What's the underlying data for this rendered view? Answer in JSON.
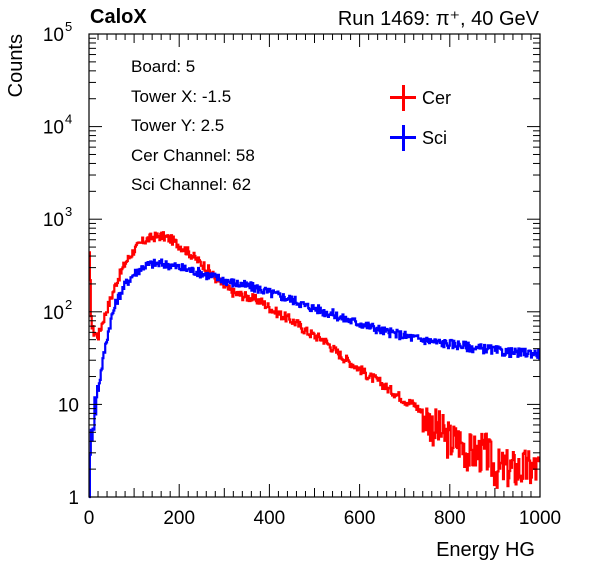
{
  "header": {
    "logo": "CaloX",
    "run": "Run 1469:   π⁺, 40 GeV"
  },
  "info_box": [
    "Board: 5",
    "Tower X: -1.5",
    "Tower Y: 2.5",
    "Cer Channel: 58",
    "Sci Channel: 62"
  ],
  "legend": [
    {
      "label": "Cer",
      "color": "#ff0000"
    },
    {
      "label": "Sci",
      "color": "#0000ff"
    }
  ],
  "colors": {
    "cer": "#ff0000",
    "sci": "#0000ff",
    "axis": "#000000"
  },
  "chart_data": {
    "type": "line",
    "xlabel": "Energy HG",
    "ylabel": "Counts",
    "xlim": [
      0,
      1000
    ],
    "ylim": [
      1,
      100000
    ],
    "yscale": "log",
    "x_ticks": [
      "0",
      "200",
      "400",
      "600",
      "800",
      "1000"
    ],
    "y_ticks": [
      {
        "value": 1,
        "base": "1",
        "exp": ""
      },
      {
        "value": 10,
        "base": "10",
        "exp": ""
      },
      {
        "value": 100,
        "base": "10",
        "exp": "2"
      },
      {
        "value": 1000,
        "base": "10",
        "exp": "3"
      },
      {
        "value": 10000,
        "base": "10",
        "exp": "4"
      },
      {
        "value": 100000,
        "base": "10",
        "exp": "5"
      }
    ],
    "x": [
      0,
      5,
      10,
      20,
      30,
      40,
      50,
      60,
      80,
      100,
      120,
      140,
      160,
      180,
      200,
      220,
      240,
      260,
      280,
      300,
      320,
      340,
      360,
      380,
      400,
      420,
      440,
      460,
      480,
      500,
      520,
      540,
      560,
      580,
      600,
      620,
      640,
      660,
      680,
      700,
      720,
      740,
      760,
      780,
      800,
      820,
      840,
      860,
      880,
      900,
      920,
      940,
      960,
      980,
      1000
    ],
    "series": [
      {
        "name": "Cer",
        "color": "#ff0000",
        "values": [
          400,
          70,
          60,
          55,
          80,
          110,
          150,
          210,
          340,
          470,
          580,
          640,
          660,
          610,
          520,
          440,
          360,
          300,
          230,
          185,
          160,
          150,
          140,
          130,
          110,
          95,
          85,
          75,
          62,
          55,
          50,
          40,
          33,
          28,
          24,
          20,
          18,
          15,
          13,
          11,
          10,
          8,
          6,
          5,
          4,
          4,
          3,
          3,
          3,
          2,
          2,
          2,
          2,
          2,
          2
        ]
      },
      {
        "name": "Sci",
        "color": "#0000ff",
        "values": [
          1,
          6,
          8,
          15,
          30,
          55,
          90,
          130,
          200,
          260,
          310,
          330,
          330,
          320,
          300,
          285,
          270,
          250,
          235,
          220,
          205,
          195,
          185,
          175,
          160,
          150,
          140,
          130,
          115,
          110,
          100,
          95,
          85,
          80,
          75,
          70,
          65,
          60,
          58,
          55,
          52,
          50,
          48,
          46,
          45,
          44,
          42,
          40,
          40,
          38,
          37,
          36,
          36,
          36,
          35
        ]
      }
    ]
  }
}
